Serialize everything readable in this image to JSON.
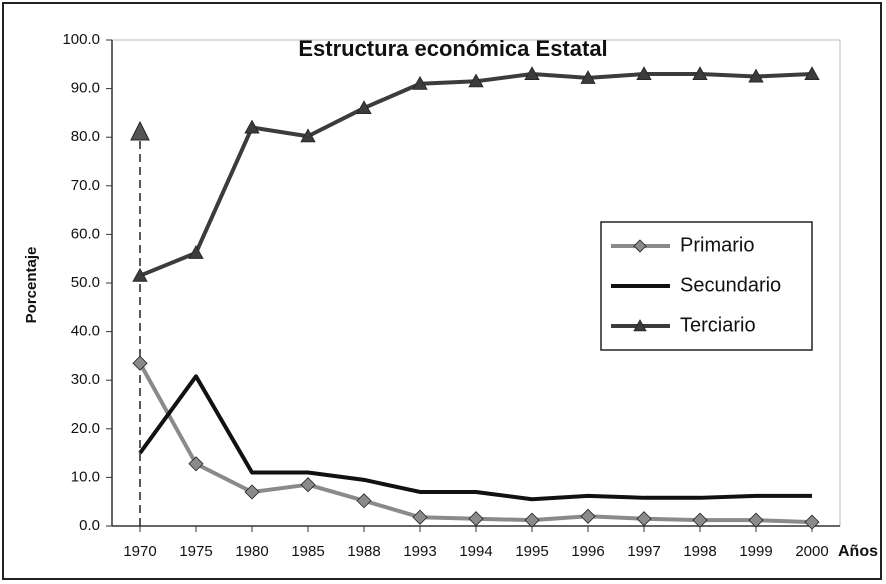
{
  "chart_data": {
    "type": "line",
    "title": "Estructura económica Estatal",
    "ylabel": "Porcentaje",
    "xlabel": "Años",
    "categories": [
      "1970",
      "1975",
      "1980",
      "1985",
      "1988",
      "1993",
      "1994",
      "1995",
      "1996",
      "1997",
      "1998",
      "1999",
      "2000"
    ],
    "series": [
      {
        "name": "Primario",
        "color": "#8a8a8a",
        "marker": "diamond",
        "values": [
          33.5,
          12.8,
          7.0,
          8.5,
          5.2,
          1.8,
          1.5,
          1.2,
          2.0,
          1.5,
          1.2,
          1.2,
          0.8
        ]
      },
      {
        "name": "Secundario",
        "color": "#111111",
        "marker": "none",
        "values": [
          15.0,
          30.8,
          11.0,
          11.0,
          9.5,
          7.0,
          7.0,
          5.5,
          6.2,
          5.8,
          5.8,
          6.2,
          6.2
        ]
      },
      {
        "name": "Terciario",
        "color": "#3c3c3c",
        "marker": "triangle",
        "values": [
          51.5,
          56.2,
          82.0,
          80.2,
          86.0,
          91.0,
          91.5,
          93.0,
          92.2,
          93.0,
          93.0,
          92.5,
          93.0
        ]
      }
    ],
    "ylim": [
      0,
      100
    ],
    "yticks": [
      {
        "value": 0,
        "label": "0.0"
      },
      {
        "value": 10,
        "label": "10.0"
      },
      {
        "value": 20,
        "label": "20.0"
      },
      {
        "value": 30,
        "label": "30.0"
      },
      {
        "value": 40,
        "label": "40.0"
      },
      {
        "value": 50,
        "label": "50.0"
      },
      {
        "value": 60,
        "label": "60.0"
      },
      {
        "value": 70,
        "label": "70.0"
      },
      {
        "value": 80,
        "label": "80.0"
      },
      {
        "value": 90,
        "label": "90.0"
      },
      {
        "value": 100,
        "label": "100.0"
      }
    ],
    "grid": false,
    "legend": "right"
  }
}
